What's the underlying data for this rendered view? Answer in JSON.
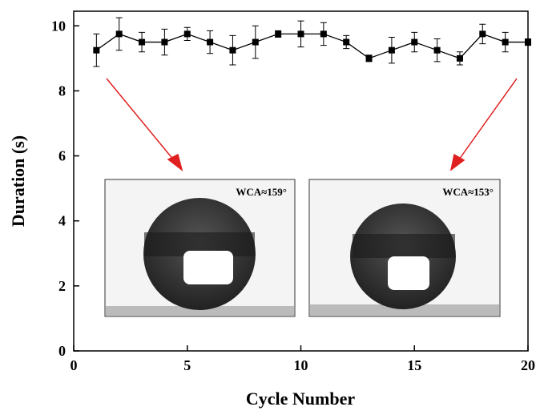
{
  "chart_data": {
    "type": "line",
    "xlabel": "Cycle Number",
    "ylabel": "Duration (s)",
    "x": [
      1,
      2,
      3,
      4,
      5,
      6,
      7,
      8,
      9,
      10,
      11,
      12,
      13,
      14,
      15,
      16,
      17,
      18,
      19,
      20
    ],
    "values": [
      9.25,
      9.75,
      9.5,
      9.5,
      9.75,
      9.5,
      9.25,
      9.5,
      9.75,
      9.75,
      9.75,
      9.5,
      9.0,
      9.25,
      9.5,
      9.25,
      9.0,
      9.75,
      9.5,
      9.5
    ],
    "errors": [
      0.5,
      0.5,
      0.3,
      0.4,
      0.2,
      0.35,
      0.45,
      0.5,
      0.1,
      0.4,
      0.35,
      0.2,
      0.1,
      0.4,
      0.3,
      0.35,
      0.2,
      0.3,
      0.3,
      0.1
    ],
    "color": "#000000",
    "xlim": [
      0,
      20
    ],
    "xticks": [
      0,
      5,
      10,
      15,
      20
    ],
    "ylim": [
      0,
      10.45
    ],
    "yticks": [
      0,
      2,
      4,
      6,
      8,
      10
    ],
    "annotations": [
      "WCA≈159°",
      "WCA≈153°"
    ]
  }
}
